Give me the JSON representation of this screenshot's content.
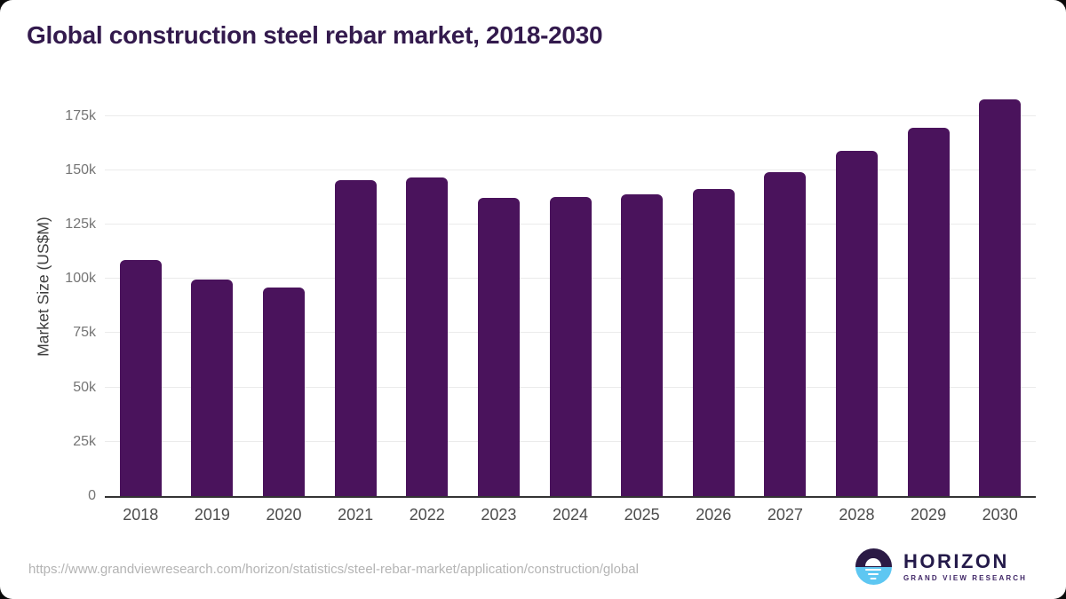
{
  "page": {
    "title": "Global construction steel rebar market, 2018-2030",
    "source_url": "https://www.grandviewresearch.com/horizon/statistics/steel-rebar-market/application/construction/global"
  },
  "branding": {
    "logo_title": "HORIZON",
    "logo_subtitle": "GRAND VIEW RESEARCH",
    "logo_icon": "horizon-sun-icon"
  },
  "colors": {
    "bar": "#4a135c",
    "title": "#331a4d",
    "grid": "#ebebeb",
    "axis": "#333333",
    "tick_text": "#757575",
    "category_text": "#4c4c4c",
    "logo_dark_purple": "#2b1a45",
    "logo_light_blue": "#5ec7f2"
  },
  "chart_data": {
    "type": "bar",
    "title": "Global construction steel rebar market, 2018-2030",
    "xlabel": "",
    "ylabel": "Market Size (US$M)",
    "unit": "US$M",
    "categories": [
      "2018",
      "2019",
      "2020",
      "2021",
      "2022",
      "2023",
      "2024",
      "2025",
      "2026",
      "2027",
      "2028",
      "2029",
      "2030"
    ],
    "values": [
      108600,
      99700,
      96200,
      145400,
      146500,
      137200,
      137700,
      139000,
      141500,
      149000,
      158800,
      169700,
      182600
    ],
    "ylim": [
      0,
      187500
    ],
    "yticks": [
      {
        "value": 0,
        "label": "0"
      },
      {
        "value": 25000,
        "label": "25k"
      },
      {
        "value": 50000,
        "label": "50k"
      },
      {
        "value": 75000,
        "label": "75k"
      },
      {
        "value": 100000,
        "label": "100k"
      },
      {
        "value": 125000,
        "label": "125k"
      },
      {
        "value": 150000,
        "label": "150k"
      },
      {
        "value": 175000,
        "label": "175k"
      }
    ],
    "grid": true,
    "legend": false
  }
}
